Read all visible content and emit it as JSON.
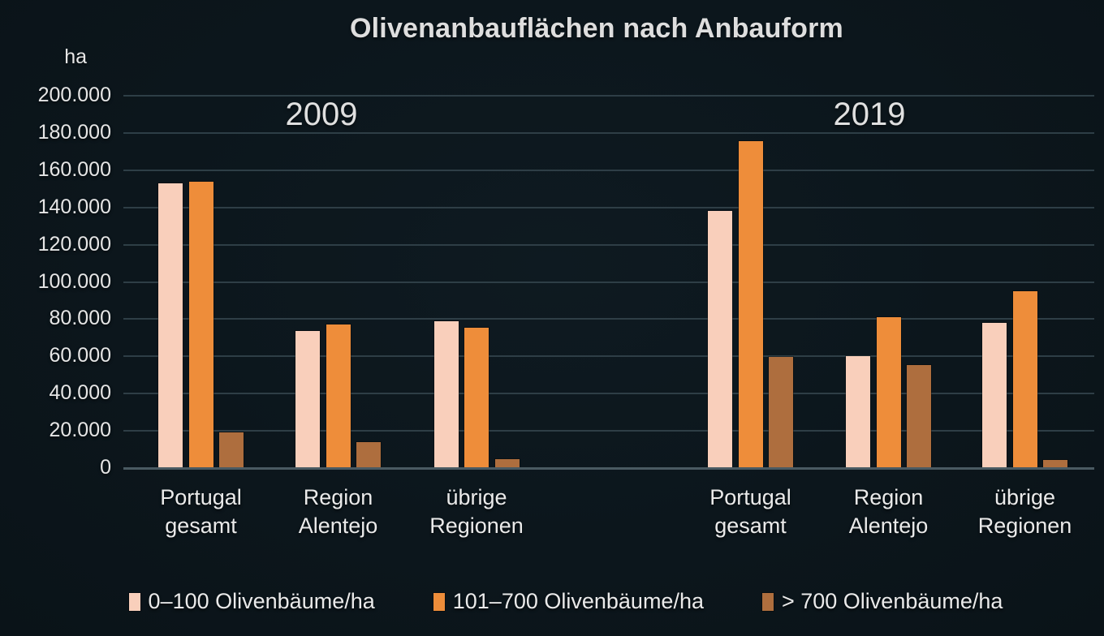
{
  "colors": {
    "background": "#0c161c",
    "text": "#e3e3e3",
    "gridline": "#2e3e46",
    "axis_line": "#4a5a62",
    "series_pink": "#f9cfbb",
    "series_orange": "#ee8d3a",
    "series_brown": "#ae6e3e"
  },
  "chart_data": {
    "type": "bar",
    "title": "Olivenanbauflächen nach Anbauform",
    "y_unit": "ha",
    "ylim": [
      0,
      200000
    ],
    "ytick_step": 20000,
    "ytick_labels_top_to_bottom": [
      "200.000",
      "180.000",
      "160.000",
      "140.000",
      "120.000",
      "100.000",
      "80.000",
      "60.000",
      "40.000",
      "20.000",
      "0"
    ],
    "grid": true,
    "legend_position": "bottom",
    "categories": [
      "Portugal gesamt",
      "Region Alentejo",
      "übrige Regionen"
    ],
    "category_lines": [
      [
        "Portugal",
        "gesamt"
      ],
      [
        "Region",
        "Alentejo"
      ],
      [
        "übrige",
        "Regionen"
      ]
    ],
    "panels": [
      {
        "label": "2009",
        "series": [
          {
            "name": "0–100 Olivenbäume/ha",
            "color": "#f9cfbb",
            "values": [
              153000,
              73500,
              79000
            ]
          },
          {
            "name": "101–700 Olivenbäume/ha",
            "color": "#ee8d3a",
            "values": [
              154000,
              77000,
              75500
            ]
          },
          {
            "name": "> 700 Olivenbäume/ha",
            "color": "#ae6e3e",
            "values": [
              19000,
              14000,
              5000
            ]
          }
        ]
      },
      {
        "label": "2019",
        "series": [
          {
            "name": "0–100 Olivenbäume/ha",
            "color": "#f9cfbb",
            "values": [
              138000,
              60000,
              78000
            ]
          },
          {
            "name": "101–700 Olivenbäume/ha",
            "color": "#ee8d3a",
            "values": [
              175500,
              81000,
              95000
            ]
          },
          {
            "name": "> 700 Olivenbäume/ha",
            "color": "#ae6e3e",
            "values": [
              59500,
              55500,
              4500
            ]
          }
        ]
      }
    ],
    "legend": [
      {
        "label": "0–100 Olivenbäume/ha",
        "color": "#f9cfbb"
      },
      {
        "label": "101–700 Olivenbäume/ha",
        "color": "#ee8d3a"
      },
      {
        "label": "> 700 Olivenbäume/ha",
        "color": "#ae6e3e"
      }
    ]
  }
}
